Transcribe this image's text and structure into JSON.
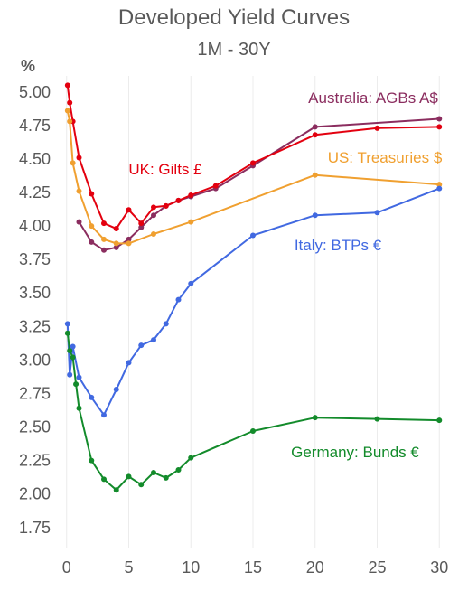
{
  "chart_data": {
    "type": "line",
    "title": "Developed Yield Curves",
    "subtitle": "1M - 30Y",
    "ylabel": "%",
    "xlabel": "",
    "xlim": [
      -1,
      31
    ],
    "ylim": [
      1.6,
      5.12
    ],
    "xticks": [
      0,
      5,
      10,
      15,
      20,
      25,
      30
    ],
    "yticks": [
      1.75,
      2.0,
      2.25,
      2.5,
      2.75,
      3.0,
      3.25,
      3.5,
      3.75,
      4.0,
      4.25,
      4.5,
      4.75,
      5.0
    ],
    "ytick_labels": [
      "1.75",
      "2.00",
      "2.25",
      "2.50",
      "2.75",
      "3.00",
      "3.25",
      "3.50",
      "3.75",
      "4.00",
      "4.25",
      "4.50",
      "4.75",
      "5.00"
    ],
    "xtick_labels": [
      "0",
      "5",
      "10",
      "15",
      "20",
      "25",
      "30"
    ],
    "grid": "vertical",
    "legend": "inline labels",
    "series": [
      {
        "name": "Australia: AGBs A$",
        "color": "#8b2d5f",
        "x": [
          1,
          2,
          3,
          4,
          5,
          6,
          7,
          8,
          9,
          10,
          12,
          15,
          20,
          30
        ],
        "y": [
          4.03,
          3.88,
          3.82,
          3.84,
          3.9,
          3.99,
          4.08,
          4.15,
          4.19,
          4.22,
          4.28,
          4.45,
          4.74,
          4.8
        ]
      },
      {
        "name": "UK: Gilts £",
        "color": "#e3000f",
        "x": [
          0.08,
          0.25,
          0.5,
          1,
          2,
          3,
          4,
          5,
          6,
          7,
          8,
          9,
          10,
          12,
          15,
          20,
          25,
          30
        ],
        "y": [
          5.05,
          4.92,
          4.78,
          4.51,
          4.24,
          4.02,
          3.98,
          4.12,
          4.02,
          4.14,
          4.15,
          4.19,
          4.23,
          4.3,
          4.47,
          4.68,
          4.73,
          4.74
        ]
      },
      {
        "name": "US: Treasuries $",
        "color": "#f0a030",
        "x": [
          0.08,
          0.25,
          0.5,
          1,
          2,
          3,
          4,
          5,
          7,
          10,
          20,
          30
        ],
        "y": [
          4.86,
          4.78,
          4.47,
          4.26,
          4.0,
          3.9,
          3.87,
          3.87,
          3.94,
          4.03,
          4.38,
          4.31
        ]
      },
      {
        "name": "Italy: BTPs €",
        "color": "#4169e1",
        "x": [
          0.08,
          0.25,
          0.5,
          1,
          2,
          3,
          4,
          5,
          6,
          7,
          8,
          9,
          10,
          15,
          20,
          25,
          30
        ],
        "y": [
          3.27,
          2.89,
          3.1,
          2.87,
          2.72,
          2.59,
          2.78,
          2.98,
          3.11,
          3.15,
          3.27,
          3.45,
          3.57,
          3.93,
          4.08,
          4.1,
          4.28
        ]
      },
      {
        "name": "Germany: Bunds €",
        "color": "#138b2b",
        "x": [
          0.08,
          0.25,
          0.5,
          0.75,
          1,
          2,
          3,
          4,
          5,
          6,
          7,
          8,
          9,
          10,
          15,
          20,
          25,
          30
        ],
        "y": [
          3.2,
          3.07,
          3.02,
          2.82,
          2.64,
          2.25,
          2.11,
          2.03,
          2.13,
          2.07,
          2.16,
          2.12,
          2.18,
          2.27,
          2.47,
          2.57,
          2.56,
          2.55
        ]
      }
    ]
  }
}
